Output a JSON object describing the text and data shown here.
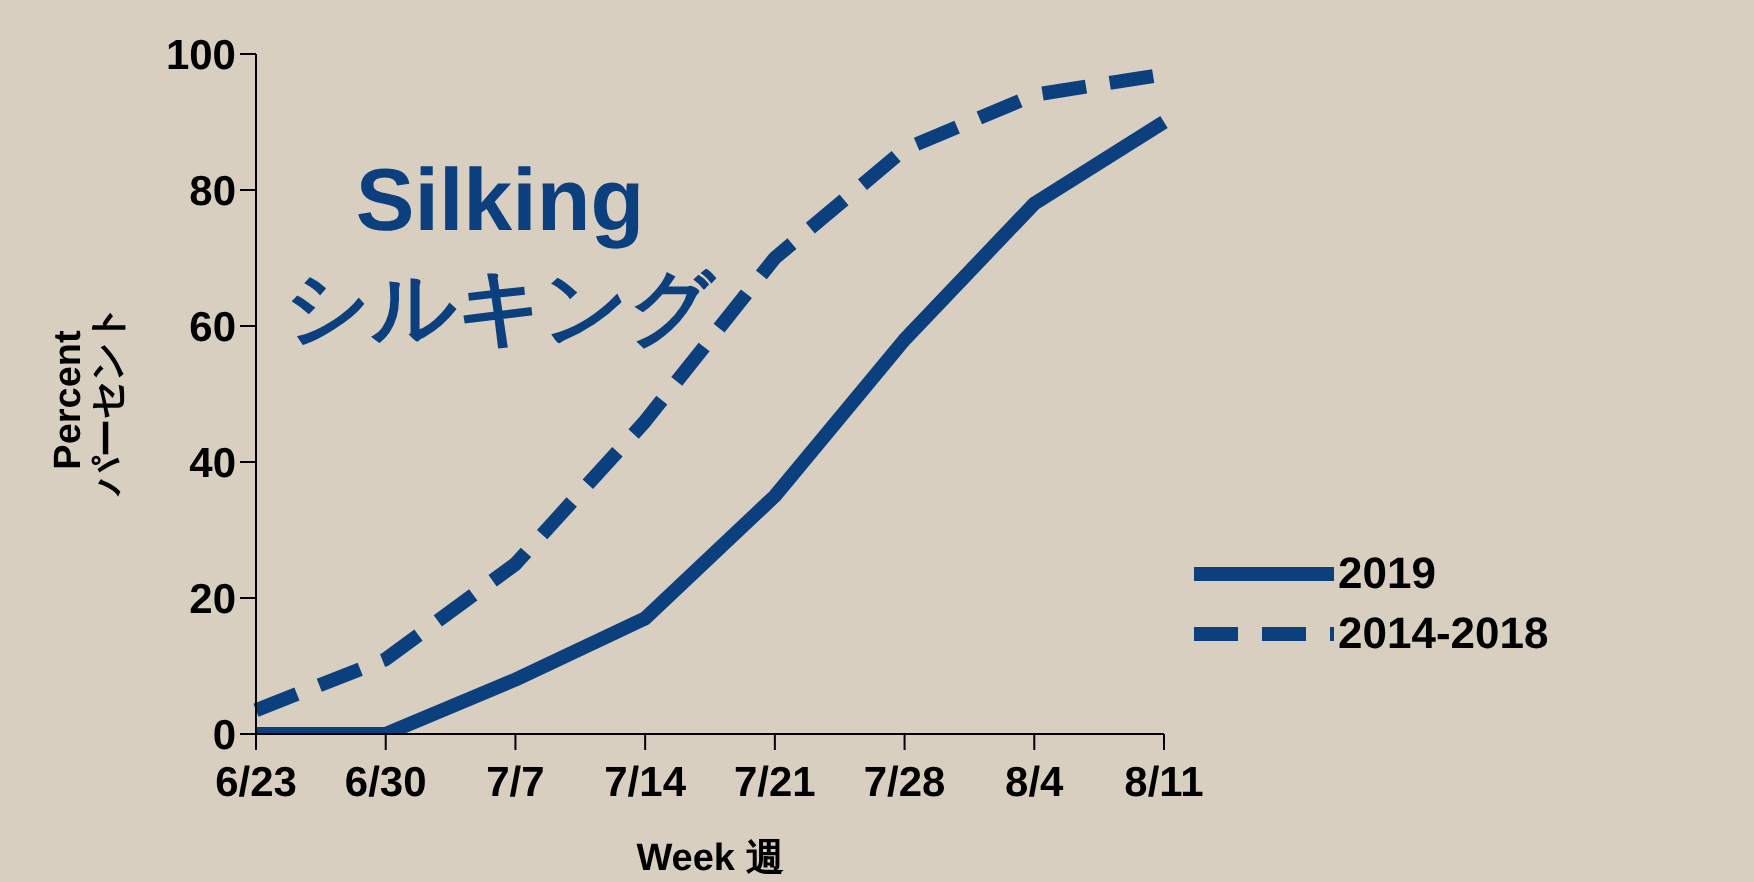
{
  "chart_data": {
    "type": "line",
    "title": "Silking",
    "subtitle": "シルキング",
    "xlabel": "Week  週",
    "ylabel": "Percent\nパーセント",
    "categories": [
      "6/23",
      "6/30",
      "7/7",
      "7/14",
      "7/21",
      "7/28",
      "8/4",
      "8/11"
    ],
    "series": [
      {
        "name": "2019",
        "color": "#0b3f7e",
        "line_style": "solid",
        "values": [
          0,
          0,
          8,
          17,
          35,
          58,
          78,
          90
        ]
      },
      {
        "name": "2014-2018",
        "color": "#0b3f7e",
        "line_style": "dashed",
        "values": [
          3.5,
          11,
          25,
          46,
          70,
          86,
          94,
          97
        ]
      }
    ],
    "ylim": [
      0,
      100
    ],
    "yticks": [
      0,
      20,
      40,
      60,
      80,
      100
    ],
    "grid": false,
    "legend": "bottom right",
    "marker": "none"
  }
}
